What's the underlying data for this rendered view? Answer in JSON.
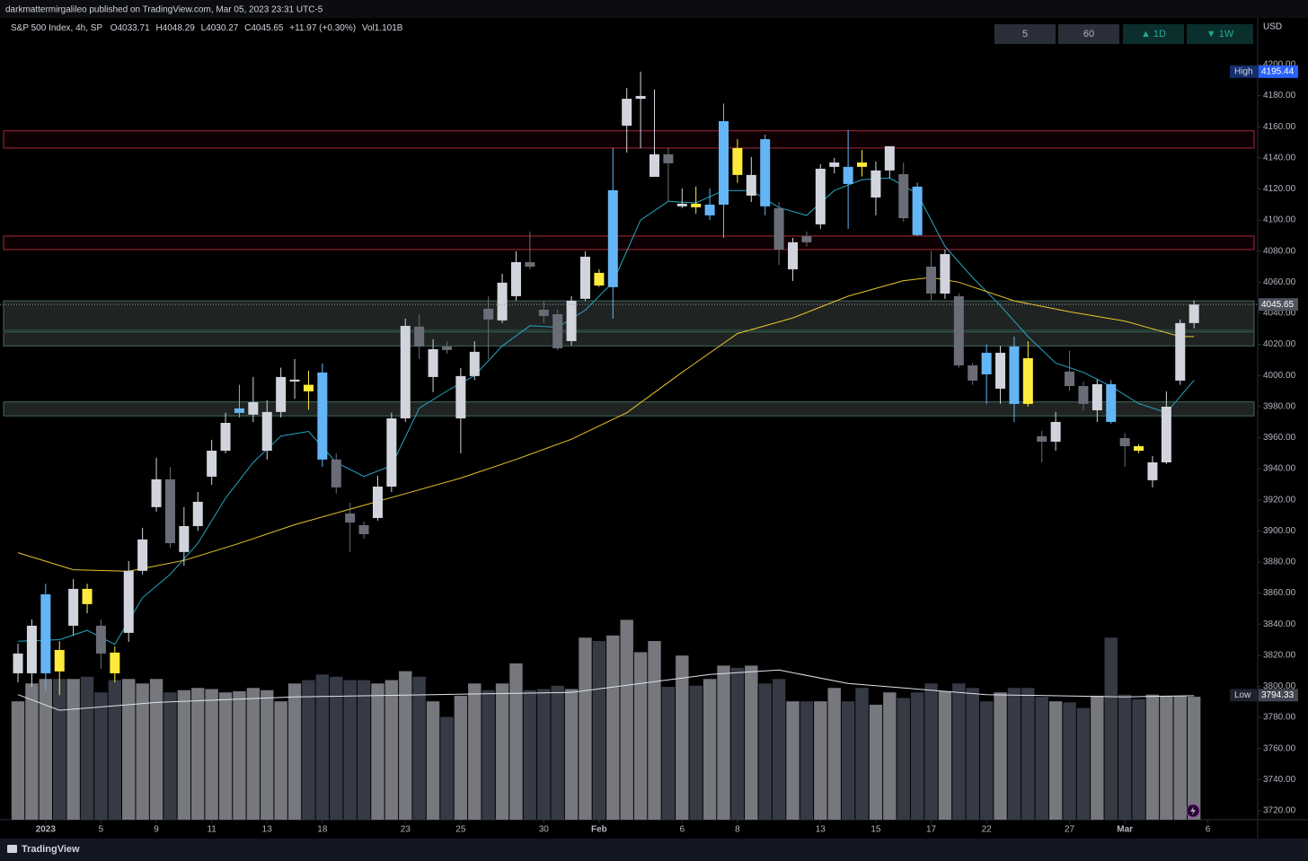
{
  "credit": "darkmattermirgalileo published on TradingView.com, Mar 05, 2023 23:31 UTC-5",
  "brand": "TradingView",
  "chart_data": {
    "type": "candlestick",
    "header": {
      "symbol": "S&P 500 Index, 4h, SP",
      "o": "O",
      "h": "H",
      "l": "L",
      "c": "C",
      "change": "+11.97 (+0.30%)",
      "vol": "Vol",
      "vol_unit": "B"
    },
    "currency": "USD",
    "intervals": [
      "5",
      "60",
      "▲ 1D",
      "▼ 1W"
    ],
    "open": [
      3808.4,
      3808.4,
      3808.4,
      3823.4,
      3839,
      3862.7,
      3839,
      3821.7,
      3834.4,
      3874.3,
      3915.3,
      3933.2,
      3886.4,
      3903.1,
      3934.9,
      3951.6,
      3975.9,
      3974.8,
      3951.6,
      3976.5,
      3996.1,
      3994,
      4001.9,
      3945.9,
      3911.2,
      3903.7,
      3908.3,
      3928.5,
      3972.4,
      4031.4,
      3999,
      4018.6,
      3972.4,
      3999.6,
      4042.9,
      4035.4,
      4051,
      4072.9,
      4042.3,
      4039.4,
      4022.1,
      4049.3,
      4066,
      4056.8,
      4160.7,
      4178,
      4127.8,
      4142.3,
      4108.8,
      4110.5,
      4103,
      4109.9,
      4146.3,
      4115.7,
      4152,
      4107.6,
      4068.3,
      4089.7,
      4097.2,
      4134.2,
      4134.2,
      4137,
      4114.5,
      4131.9,
      4129.5,
      4121.5,
      4070,
      4052.7,
      4051,
      4006.5,
      4014.6,
      3991.5,
      4018.6,
      4011.1,
      3960.9,
      3957.4,
      4002.5,
      3993.2,
      3977.6,
      3994.4,
      3959.7,
      3954.5,
      3932.6,
      3944.1,
      3996.7,
      4033.71
    ],
    "high": [
      3827.5,
      3843,
      3866,
      3829,
      3869,
      3866,
      3843,
      3825.7,
      3880.6,
      3902,
      3947,
      3941,
      3915.3,
      3925,
      3958.6,
      3976,
      3994,
      3999,
      3984,
      4005,
      4010.6,
      4003,
      4007.7,
      3950,
      3918.1,
      3906,
      3935.5,
      3976,
      4036.5,
      4039.4,
      4023.3,
      4022,
      4004.8,
      4022,
      4051,
      4065.4,
      4079.9,
      4092.6,
      4048.1,
      4042.3,
      4051,
      4079.9,
      4068.3,
      4146.3,
      4185,
      4195.44,
      4184,
      4146.3,
      4120.3,
      4121.5,
      4120.3,
      4175,
      4152,
      4140.5,
      4155,
      4111.6,
      4088.5,
      4092.6,
      4135.9,
      4140,
      4157.8,
      4145,
      4137.6,
      4147.5,
      4137,
      4124,
      4079.9,
      4081,
      4053,
      4008,
      4020,
      4019,
      4025,
      4022,
      3964.4,
      3976.5,
      4016,
      3996,
      3997.3,
      3997,
      3963,
      3955.7,
      3948.2,
      3989.8,
      4036,
      4048.29
    ],
    "low": [
      3802.6,
      3799.7,
      3797,
      3794.33,
      3832.7,
      3847,
      3811.3,
      3802.6,
      3828.6,
      3872,
      3912.4,
      3889.3,
      3877.7,
      3900,
      3929.7,
      3949.9,
      3973,
      3970,
      3945.9,
      3973,
      3985,
      3978,
      3941.2,
      3923.9,
      3886.4,
      3895,
      3906.6,
      3925,
      3970.1,
      4010.6,
      3989.2,
      4014,
      3949.9,
      3997,
      4010.6,
      4033.7,
      4048.1,
      4068.3,
      4033.7,
      4016.4,
      4019.2,
      4048,
      4057,
      4036.5,
      4143.4,
      4146.3,
      4127.8,
      4111.6,
      4107.6,
      4104,
      4100.1,
      4088.5,
      4124,
      4111.6,
      4103,
      4071.2,
      4060.8,
      4083,
      4094.3,
      4130,
      4094.3,
      4128,
      4103,
      4127,
      4099,
      4089.7,
      4048.1,
      4049.3,
      4005,
      3994,
      3981.7,
      3981.7,
      3970,
      3980,
      3944.1,
      3951.6,
      3990,
      3977.6,
      3970,
      3969,
      3941.2,
      3950,
      3928,
      3943,
      3994,
      4030.27
    ],
    "close": [
      3821.1,
      3839,
      3859.2,
      3809.6,
      3862.7,
      3852.9,
      3821.1,
      3808.4,
      3874.3,
      3894.5,
      3933.2,
      3892.1,
      3903.1,
      3918.7,
      3951.6,
      3969.5,
      3978.8,
      3982.8,
      3976.5,
      3999,
      3997.3,
      3989.8,
      3945.9,
      3928,
      3905.4,
      3897.9,
      3928.5,
      3972.4,
      4031.9,
      4018.6,
      4016.9,
      4016.4,
      3999.6,
      4015.2,
      4036,
      4059.7,
      4072.9,
      4070,
      4038.3,
      4017.5,
      4048.1,
      4076.4,
      4057.9,
      4119.2,
      4178,
      4179.8,
      4142.3,
      4136.5,
      4110.5,
      4108.2,
      4109.9,
      4163.6,
      4129,
      4129,
      4108.8,
      4081,
      4085.7,
      4085.7,
      4133,
      4137,
      4123.2,
      4134.2,
      4131.9,
      4147.5,
      4101.2,
      4090.3,
      4052.7,
      4078.1,
      4006.5,
      3996.7,
      4000.7,
      4014.6,
      3981.7,
      3981.7,
      3957.4,
      3970.1,
      3993.2,
      3981.7,
      3994.4,
      3970.1,
      3954.5,
      3951.6,
      3944.1,
      3979.9,
      4033.7,
      4045.65
    ],
    "colors": [
      "#d1d4dc",
      "#d1d4dc",
      "#64b5f6",
      "#ffeb3b",
      "#d1d4dc",
      "#ffeb3b",
      "#6a6d78",
      "#ffeb3b",
      "#d1d4dc",
      "#d1d4dc",
      "#d1d4dc",
      "#6a6d78",
      "#d1d4dc",
      "#d1d4dc",
      "#d1d4dc",
      "#d1d4dc",
      "#64b5f6",
      "#d1d4dc",
      "#d1d4dc",
      "#d1d4dc",
      "#d1d4dc",
      "#ffeb3b",
      "#64b5f6",
      "#6a6d78",
      "#6a6d78",
      "#6a6d78",
      "#d1d4dc",
      "#d1d4dc",
      "#d1d4dc",
      "#6a6d78",
      "#d1d4dc",
      "#6a6d78",
      "#d1d4dc",
      "#d1d4dc",
      "#6a6d78",
      "#d1d4dc",
      "#d1d4dc",
      "#6a6d78",
      "#6a6d78",
      "#6a6d78",
      "#d1d4dc",
      "#d1d4dc",
      "#ffeb3b",
      "#64b5f6",
      "#d1d4dc",
      "#d1d4dc",
      "#d1d4dc",
      "#6a6d78",
      "#d1d4dc",
      "#ffeb3b",
      "#64b5f6",
      "#64b5f6",
      "#ffeb3b",
      "#d1d4dc",
      "#64b5f6",
      "#6a6d78",
      "#d1d4dc",
      "#6a6d78",
      "#d1d4dc",
      "#d1d4dc",
      "#64b5f6",
      "#ffeb3b",
      "#d1d4dc",
      "#d1d4dc",
      "#6a6d78",
      "#64b5f6",
      "#6a6d78",
      "#d1d4dc",
      "#6a6d78",
      "#6a6d78",
      "#64b5f6",
      "#d1d4dc",
      "#64b5f6",
      "#ffeb3b",
      "#6a6d78",
      "#d1d4dc",
      "#6a6d78",
      "#6a6d78",
      "#d1d4dc",
      "#64b5f6",
      "#6a6d78",
      "#ffeb3b",
      "#d1d4dc",
      "#d1d4dc",
      "#d1d4dc",
      "#d1d4dc"
    ],
    "volume": [
      1.06,
      1.22,
      1.26,
      1.26,
      1.26,
      1.28,
      1.14,
      1.25,
      1.26,
      1.22,
      1.26,
      1.14,
      1.16,
      1.18,
      1.17,
      1.14,
      1.15,
      1.18,
      1.16,
      1.06,
      1.22,
      1.25,
      1.3,
      1.28,
      1.25,
      1.25,
      1.22,
      1.25,
      1.33,
      1.28,
      1.06,
      0.92,
      1.11,
      1.22,
      1.16,
      1.22,
      1.4,
      1.16,
      1.17,
      1.2,
      1.17,
      1.63,
      1.6,
      1.65,
      1.79,
      1.5,
      1.6,
      1.19,
      1.47,
      1.2,
      1.26,
      1.38,
      1.36,
      1.38,
      1.22,
      1.26,
      1.06,
      1.06,
      1.06,
      1.18,
      1.06,
      1.18,
      1.03,
      1.14,
      1.09,
      1.14,
      1.22,
      1.15,
      1.22,
      1.18,
      1.06,
      1.14,
      1.18,
      1.18,
      1.1,
      1.06,
      1.05,
      1.0,
      1.11,
      1.63,
      1.12,
      1.08,
      1.12,
      1.11,
      1.11,
      1.101
    ],
    "volume_colors": {
      "up": "#76787e",
      "down": "#363a45"
    },
    "volume_lim": [
      0,
      7.18
    ],
    "volume_ma": {
      "color": "#e0e3eb",
      "x": [
        0,
        3,
        10,
        20,
        30,
        40,
        50,
        55,
        60,
        70,
        80,
        85
      ],
      "values": [
        1.12,
        0.98,
        1.05,
        1.1,
        1.12,
        1.14,
        1.3,
        1.34,
        1.22,
        1.12,
        1.1,
        1.11
      ]
    },
    "lines": [
      {
        "color": "#26a6c4",
        "x": [
          0,
          3,
          5,
          7,
          9,
          11,
          13,
          15,
          17,
          19,
          21,
          23,
          25,
          27,
          29,
          31,
          33,
          35,
          37,
          39,
          41,
          43,
          45,
          47,
          49,
          51,
          53,
          55,
          57,
          59,
          61,
          63,
          65,
          67,
          69,
          71,
          73,
          75,
          77,
          79,
          81,
          83,
          85
        ],
        "values": [
          3829,
          3830,
          3836,
          3827,
          3857,
          3872,
          3892,
          3921,
          3944,
          3961,
          3964,
          3944,
          3935,
          3942,
          3979,
          3990,
          4000,
          4019,
          4032,
          4031,
          4042,
          4060,
          4100,
          4112,
          4111,
          4119,
          4119,
          4108,
          4103,
          4119,
          4126,
          4127,
          4117,
          4083,
          4063,
          4045,
          4025,
          4008,
          4002,
          3993,
          3982,
          3976,
          3997
        ]
      },
      {
        "color": "#e8c62a",
        "x": [
          0,
          4,
          8,
          12,
          16,
          20,
          24,
          28,
          32,
          36,
          40,
          44,
          48,
          52,
          56,
          60,
          64,
          66,
          68,
          72,
          76,
          80,
          84,
          85
        ],
        "values": [
          3886,
          3875,
          3874,
          3881,
          3892,
          3904,
          3914,
          3924,
          3934,
          3946,
          3959,
          3976,
          4002,
          4027,
          4037,
          4051,
          4061,
          4063,
          4060,
          4048,
          4041,
          4035,
          4025,
          4025
        ]
      }
    ],
    "zones": [
      {
        "fill": "#0d0003",
        "stroke": "#a3293a",
        "lo": 4146.3,
        "hi": 4157.4
      },
      {
        "fill": "#0d0003",
        "stroke": "#a3293a",
        "lo": 4081,
        "hi": 4089.7
      },
      {
        "fill": "#1f2322",
        "stroke": "#3f6a5c",
        "lo": 4029,
        "hi": 4048
      },
      {
        "fill": "#1f2322",
        "stroke": "#3f6a5c",
        "lo": 4019,
        "hi": 4028
      },
      {
        "fill": "#1f2322",
        "stroke": "#3f6a5c",
        "lo": 3974,
        "hi": 3983
      }
    ],
    "high_marker": {
      "label": "High",
      "value": 4195.44
    },
    "low_marker": {
      "label": "Low",
      "value": 3794.33
    },
    "xlim": [
      -1.3,
      89.6
    ],
    "xticks": [
      {
        "value": 2,
        "label": "2023"
      },
      {
        "value": 6,
        "label": "5"
      },
      {
        "value": 10,
        "label": "9"
      },
      {
        "value": 14,
        "label": "11"
      },
      {
        "value": 18,
        "label": "13"
      },
      {
        "value": 22,
        "label": "18"
      },
      {
        "value": 28,
        "label": "23"
      },
      {
        "value": 32,
        "label": "25"
      },
      {
        "value": 38,
        "label": "30"
      },
      {
        "value": 42,
        "label": "Feb"
      },
      {
        "value": 48,
        "label": "6"
      },
      {
        "value": 52,
        "label": "8"
      },
      {
        "value": 58,
        "label": "13"
      },
      {
        "value": 62,
        "label": "15"
      },
      {
        "value": 66,
        "label": "17"
      },
      {
        "value": 70,
        "label": "22"
      },
      {
        "value": 76,
        "label": "27"
      },
      {
        "value": 80,
        "label": "Mar"
      },
      {
        "value": 86,
        "label": "6"
      }
    ],
    "ylim": [
      3714.2,
      4230.0
    ],
    "yticks": [
      {
        "value": 3720,
        "label": "3720.00"
      },
      {
        "value": 3740,
        "label": "3740.00"
      },
      {
        "value": 3760,
        "label": "3760.00"
      },
      {
        "value": 3780,
        "label": "3780.00"
      },
      {
        "value": 3800,
        "label": "3800.00"
      },
      {
        "value": 3820,
        "label": "3820.00"
      },
      {
        "value": 3840,
        "label": "3840.00"
      },
      {
        "value": 3860,
        "label": "3860.00"
      },
      {
        "value": 3880,
        "label": "3880.00"
      },
      {
        "value": 3900,
        "label": "3900.00"
      },
      {
        "value": 3920,
        "label": "3920.00"
      },
      {
        "value": 3940,
        "label": "3940.00"
      },
      {
        "value": 3960,
        "label": "3960.00"
      },
      {
        "value": 3980,
        "label": "3980.00"
      },
      {
        "value": 4000,
        "label": "4000.00"
      },
      {
        "value": 4020,
        "label": "4020.00"
      },
      {
        "value": 4040,
        "label": "4040.00"
      },
      {
        "value": 4060,
        "label": "4060.00"
      },
      {
        "value": 4080,
        "label": "4080.00"
      },
      {
        "value": 4100,
        "label": "4100.00"
      },
      {
        "value": 4120,
        "label": "4120.00"
      },
      {
        "value": 4140,
        "label": "4140.00"
      },
      {
        "value": 4160,
        "label": "4160.00"
      },
      {
        "value": 4180,
        "label": "4180.00"
      },
      {
        "value": 4200,
        "label": "4200.00"
      }
    ]
  }
}
